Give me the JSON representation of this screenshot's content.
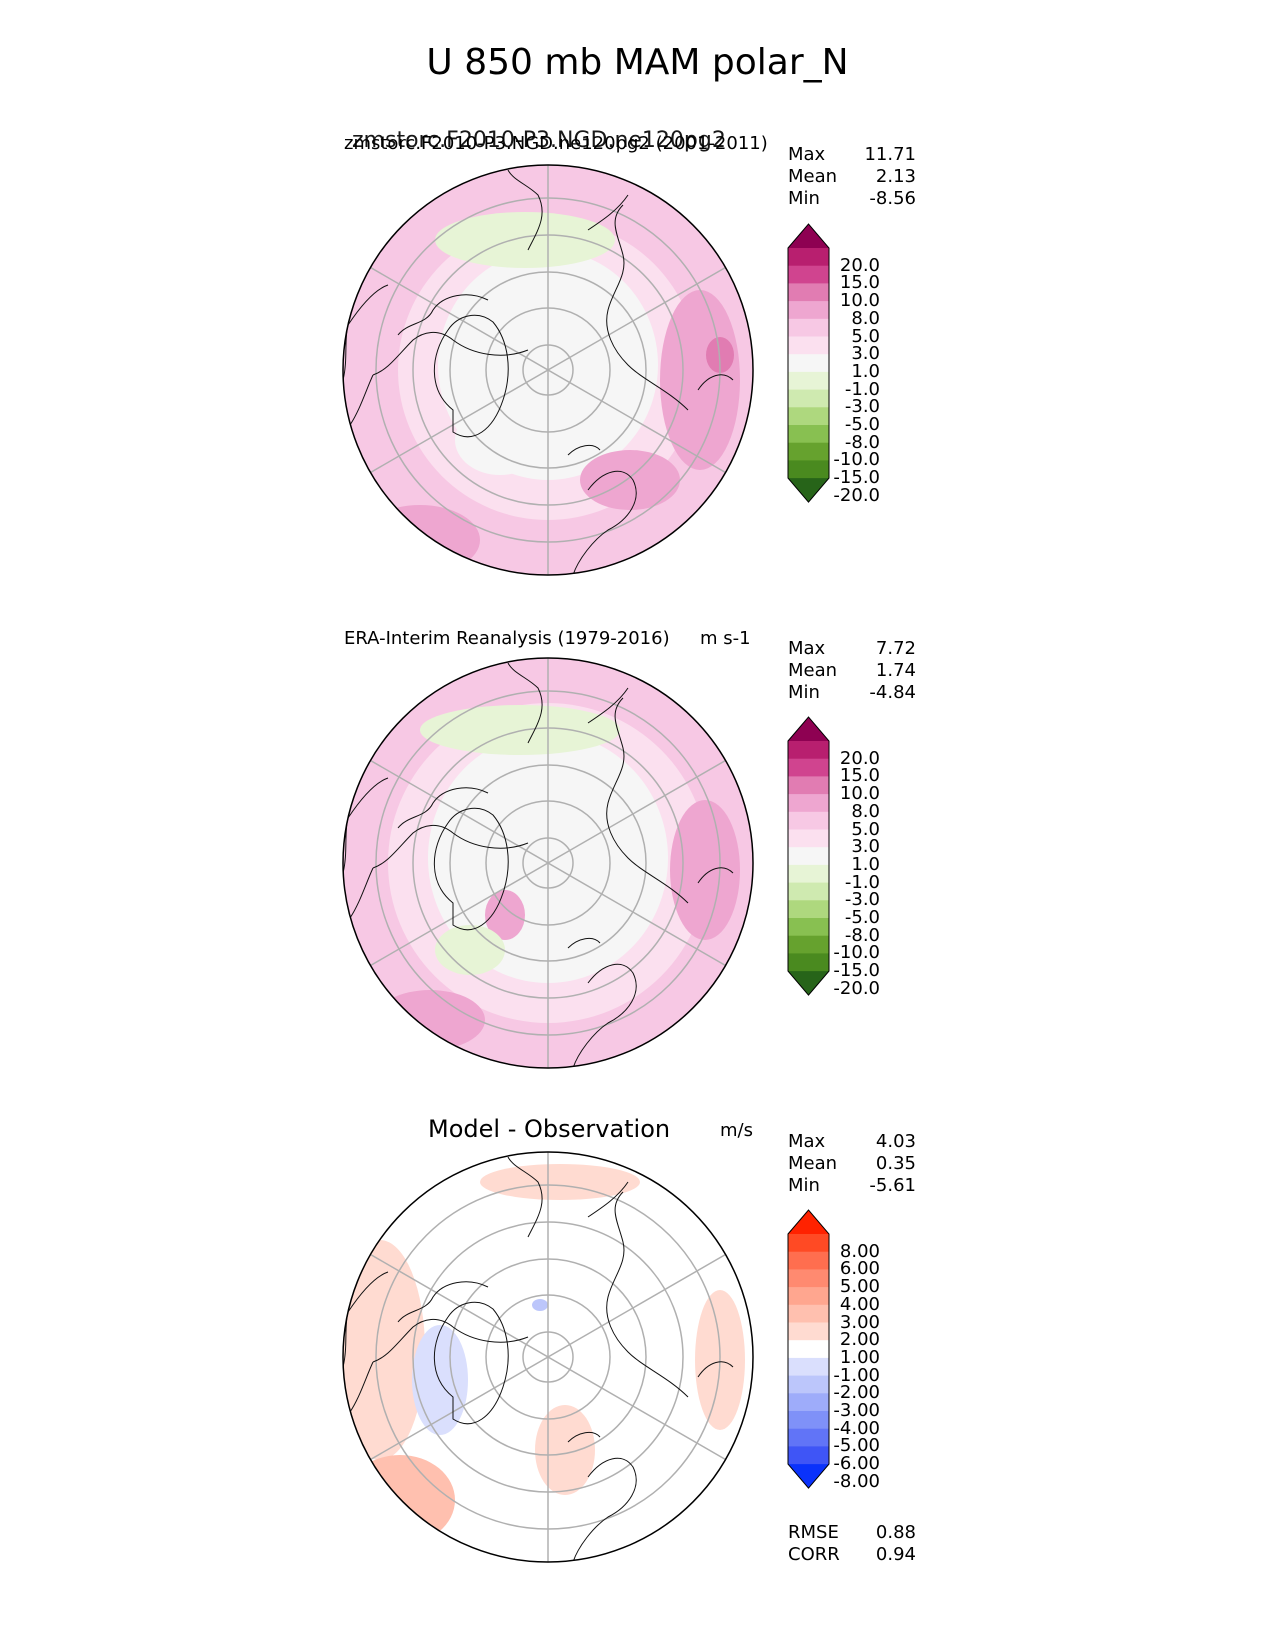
{
  "figure": {
    "title": "U 850 mb MAM polar_N"
  },
  "chart_data": [
    {
      "type": "polar-contour-map",
      "projection": "north-polar-stereographic",
      "title": "zmstorc.F2010-P3.NGD.ne120pg2 (2001-2011)",
      "title_overlap": "zmstorc.F2010-P3.NGD.ne120pg2",
      "units": "",
      "stats": {
        "max_label": "Max",
        "max": "11.71",
        "mean_label": "Mean",
        "mean": "2.13",
        "min_label": "Min",
        "min": "-8.56"
      },
      "colorbar": {
        "levels": [
          "20.0",
          "15.0",
          "10.0",
          "8.0",
          "5.0",
          "3.0",
          "1.0",
          "-1.0",
          "-3.0",
          "-5.0",
          "-8.0",
          "-10.0",
          "-15.0",
          "-20.0"
        ],
        "colors": [
          "#8e0152",
          "#b81f6f",
          "#d0448f",
          "#e17cb2",
          "#eea6d0",
          "#f7c8e4",
          "#fbe0ef",
          "#f6f6f6",
          "#e7f4d6",
          "#cfeab0",
          "#aed87e",
          "#88c051",
          "#66a22e",
          "#4a8a1f",
          "#276419"
        ],
        "extend": "both"
      }
    },
    {
      "type": "polar-contour-map",
      "projection": "north-polar-stereographic",
      "title": "ERA-Interim Reanalysis (1979-2016)",
      "units": "m s-1",
      "stats": {
        "max_label": "Max",
        "max": "7.72",
        "mean_label": "Mean",
        "mean": "1.74",
        "min_label": "Min",
        "min": "-4.84"
      },
      "colorbar": {
        "levels": [
          "20.0",
          "15.0",
          "10.0",
          "8.0",
          "5.0",
          "3.0",
          "1.0",
          "-1.0",
          "-3.0",
          "-5.0",
          "-8.0",
          "-10.0",
          "-15.0",
          "-20.0"
        ],
        "colors": [
          "#8e0152",
          "#b81f6f",
          "#d0448f",
          "#e17cb2",
          "#eea6d0",
          "#f7c8e4",
          "#fbe0ef",
          "#f6f6f6",
          "#e7f4d6",
          "#cfeab0",
          "#aed87e",
          "#88c051",
          "#66a22e",
          "#4a8a1f",
          "#276419"
        ],
        "extend": "both"
      }
    },
    {
      "type": "polar-contour-map",
      "projection": "north-polar-stereographic",
      "title": "Model - Observation",
      "units": "m/s",
      "stats": {
        "max_label": "Max",
        "max": "4.03",
        "mean_label": "Mean",
        "mean": "0.35",
        "min_label": "Min",
        "min": "-5.61"
      },
      "metrics": {
        "rmse_label": "RMSE",
        "rmse": "0.88",
        "corr_label": "CORR",
        "corr": "0.94"
      },
      "colorbar": {
        "levels": [
          "8.00",
          "6.00",
          "5.00",
          "4.00",
          "3.00",
          "2.00",
          "1.00",
          "-1.00",
          "-2.00",
          "-3.00",
          "-4.00",
          "-5.00",
          "-6.00",
          "-8.00"
        ],
        "colors": [
          "#ff2200",
          "#ff4a24",
          "#ff6e4f",
          "#ff8a70",
          "#ffa68f",
          "#ffc0af",
          "#ffdbd1",
          "#ffffff",
          "#dadffd",
          "#bcc6fb",
          "#9eacfa",
          "#7f91f8",
          "#6174f7",
          "#3f55f6",
          "#0a32fb"
        ],
        "extend": "both"
      }
    }
  ]
}
